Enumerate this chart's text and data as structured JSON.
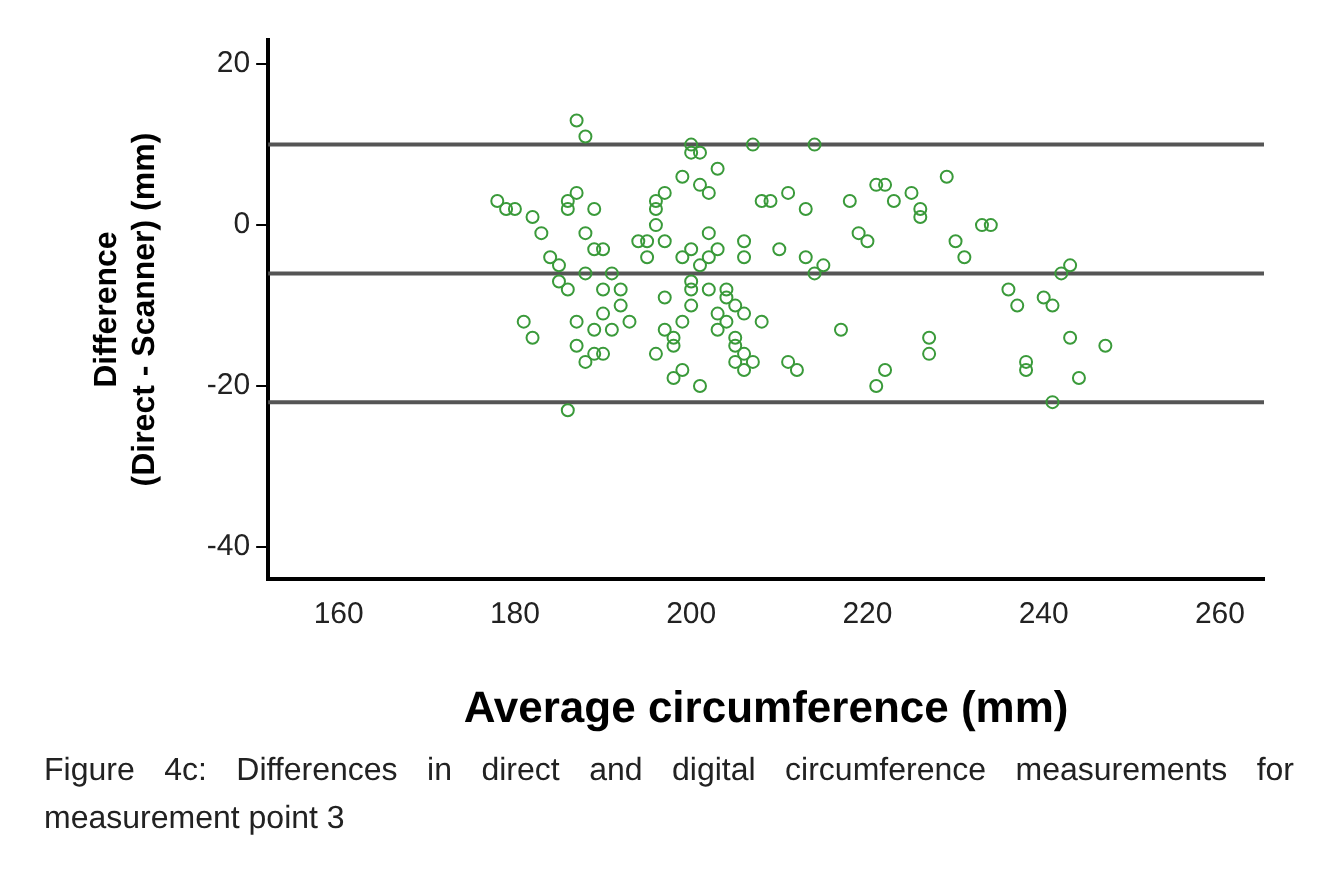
{
  "chart_data": {
    "type": "scatter",
    "xlabel": "Average circumference (mm)",
    "ylabel": "Difference\n(Direct - Scanner) (mm)",
    "annotations": [
      "Figure 4c: Differences in direct and digital circumference measurements for measurement point 3"
    ],
    "xlim": [
      152,
      265
    ],
    "ylim": [
      -44,
      23
    ],
    "xticks": [
      160,
      180,
      200,
      220,
      240,
      260
    ],
    "yticks": [
      20,
      0,
      -20,
      -40
    ],
    "grid": false,
    "legend": false,
    "marker": "circle",
    "ref_lines": [
      {
        "axis": "y",
        "value": 10,
        "color": "#555555"
      },
      {
        "axis": "y",
        "value": -6,
        "color": "#555555"
      },
      {
        "axis": "y",
        "value": -22,
        "color": "#555555"
      }
    ],
    "series": [
      {
        "color": "#3a9a3a",
        "x": [
          178,
          179,
          180,
          181,
          182,
          182,
          183,
          184,
          185,
          185,
          186,
          186,
          186,
          187,
          187,
          188,
          188,
          187,
          187,
          186,
          188,
          189,
          189,
          190,
          190,
          189,
          190,
          191,
          190,
          188,
          189,
          191,
          192,
          193,
          192,
          194,
          195,
          195,
          196,
          196,
          196,
          197,
          197,
          197,
          197,
          198,
          198,
          196,
          199,
          199,
          200,
          200,
          200,
          199,
          200,
          200,
          201,
          201,
          202,
          203,
          202,
          202,
          203,
          204,
          204,
          203,
          204,
          205,
          205,
          205,
          206,
          206,
          207,
          201,
          198,
          199,
          200,
          201,
          202,
          203,
          205,
          206,
          206,
          206,
          207,
          208,
          209,
          210,
          211,
          211,
          212,
          213,
          214,
          214,
          215,
          213,
          208,
          217,
          218,
          219,
          220,
          221,
          222,
          221,
          222,
          223,
          225,
          226,
          226,
          227,
          227,
          229,
          230,
          231,
          233,
          234,
          236,
          237,
          238,
          238,
          240,
          241,
          241,
          242,
          243,
          243,
          244,
          247
        ],
        "values": [
          3,
          2,
          2,
          -12,
          -14,
          1,
          -1,
          -4,
          -5,
          -7,
          -8,
          3,
          2,
          4,
          13,
          11,
          -1,
          -12,
          -15,
          -23,
          -17,
          -16,
          -13,
          -11,
          -8,
          -3,
          -3,
          -6,
          -16,
          -6,
          2,
          -13,
          -10,
          -12,
          -8,
          -2,
          -4,
          -2,
          0,
          2,
          3,
          4,
          -2,
          -9,
          -13,
          -14,
          -15,
          -16,
          -12,
          -18,
          -10,
          -8,
          -7,
          6,
          9,
          10,
          9,
          5,
          4,
          7,
          -1,
          -4,
          -3,
          -8,
          -9,
          -11,
          -12,
          -14,
          -15,
          -17,
          -16,
          -18,
          -17,
          -20,
          -19,
          -4,
          -3,
          -5,
          -8,
          -13,
          -10,
          -11,
          -2,
          -4,
          10,
          3,
          3,
          -3,
          4,
          -17,
          -18,
          -4,
          10,
          -6,
          -5,
          2,
          -12,
          -13,
          3,
          -1,
          -2,
          -20,
          -18,
          5,
          5,
          3,
          4,
          2,
          1,
          -14,
          -16,
          6,
          -2,
          -4,
          0,
          0,
          -8,
          -10,
          -17,
          -18,
          -9,
          -10,
          -22,
          -6,
          -5,
          -14,
          -19,
          -15
        ]
      }
    ]
  }
}
